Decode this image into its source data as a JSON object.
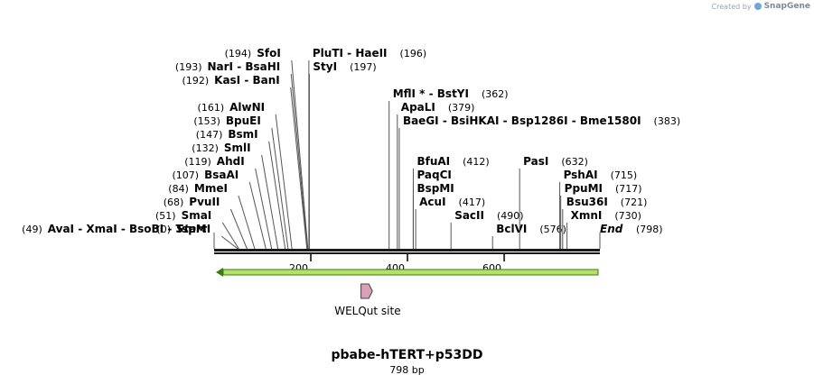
{
  "credit": {
    "prefix": "Created by",
    "brand": "SnapGene",
    "icon": "snapgene-logo-icon"
  },
  "plasmid": {
    "name": "pbabe-hTERT+p53DD",
    "length_label": "798 bp",
    "length_bp": 798
  },
  "ruler": {
    "ticks": [
      {
        "bp": 200,
        "label": "200"
      },
      {
        "bp": 400,
        "label": "400"
      },
      {
        "bp": 600,
        "label": "600"
      }
    ]
  },
  "ends": [
    {
      "name": "Start",
      "pos": "(0)",
      "bp": 0
    },
    {
      "name": "End",
      "pos": "(798)",
      "bp": 798
    }
  ],
  "sites": [
    {
      "bp": 49,
      "row": 0,
      "side": "left",
      "pos": "(49)",
      "names": [
        "AvaI",
        "XmaI",
        "BsoBI",
        "TspMI"
      ]
    },
    {
      "bp": 51,
      "row": 1,
      "side": "left",
      "pos": "(51)",
      "names": [
        "SmaI"
      ]
    },
    {
      "bp": 68,
      "row": 2,
      "side": "left",
      "pos": "(68)",
      "names": [
        "PvuII"
      ]
    },
    {
      "bp": 84,
      "row": 3,
      "side": "left",
      "pos": "(84)",
      "names": [
        "MmeI"
      ]
    },
    {
      "bp": 107,
      "row": 4,
      "side": "left",
      "pos": "(107)",
      "names": [
        "BsaAI"
      ]
    },
    {
      "bp": 119,
      "row": 5,
      "side": "left",
      "pos": "(119)",
      "names": [
        "AhdI"
      ]
    },
    {
      "bp": 132,
      "row": 6,
      "side": "left",
      "pos": "(132)",
      "names": [
        "SmlI"
      ]
    },
    {
      "bp": 147,
      "row": 7,
      "side": "left",
      "pos": "(147)",
      "names": [
        "BsmI"
      ]
    },
    {
      "bp": 153,
      "row": 8,
      "side": "left",
      "pos": "(153)",
      "names": [
        "BpuEI"
      ]
    },
    {
      "bp": 161,
      "row": 9,
      "side": "left",
      "pos": "(161)",
      "names": [
        "AlwNI"
      ]
    },
    {
      "bp": 192,
      "row": 11,
      "side": "left",
      "pos": "(192)",
      "names": [
        "KasI",
        "BanI"
      ]
    },
    {
      "bp": 193,
      "row": 12,
      "side": "left",
      "pos": "(193)",
      "names": [
        "NarI",
        "BsaHI"
      ]
    },
    {
      "bp": 194,
      "row": 13,
      "side": "left",
      "pos": "(194)",
      "names": [
        "SfoI"
      ]
    },
    {
      "bp": 196,
      "row": 13,
      "side": "right",
      "pos": "(196)",
      "names": [
        "PluTI",
        "HaeII"
      ]
    },
    {
      "bp": 197,
      "row": 12,
      "side": "right",
      "pos": "(197)",
      "names": [
        "StyI"
      ]
    },
    {
      "bp": 362,
      "row": 10,
      "side": "right",
      "pos": "(362)",
      "names": [
        "MflI *",
        "BstYI"
      ]
    },
    {
      "bp": 379,
      "row": 9,
      "side": "right",
      "pos": "(379)",
      "names": [
        "ApaLI"
      ]
    },
    {
      "bp": 383,
      "row": 8,
      "side": "right",
      "pos": "(383)",
      "names": [
        "BaeGI",
        "BsiHKAI",
        "Bsp1286I",
        "Bme1580I"
      ]
    },
    {
      "bp": 412,
      "row": 5,
      "side": "right",
      "pos": "(412)",
      "names": [
        "BfuAI"
      ]
    },
    {
      "bp": 412,
      "row": 4,
      "side": "right",
      "pos": "",
      "names": [
        "PaqCI"
      ]
    },
    {
      "bp": 412,
      "row": 3,
      "side": "right",
      "pos": "",
      "names": [
        "BspMI"
      ]
    },
    {
      "bp": 417,
      "row": 2,
      "side": "right",
      "pos": "(417)",
      "names": [
        "AcuI"
      ]
    },
    {
      "bp": 490,
      "row": 1,
      "side": "right",
      "pos": "(490)",
      "names": [
        "SacII"
      ]
    },
    {
      "bp": 576,
      "row": 0,
      "side": "right",
      "pos": "(576)",
      "names": [
        "BclVI"
      ]
    },
    {
      "bp": 632,
      "row": 5,
      "side": "right",
      "pos": "(632)",
      "names": [
        "PasI"
      ]
    },
    {
      "bp": 715,
      "row": 4,
      "side": "right",
      "pos": "(715)",
      "names": [
        "PshAI"
      ]
    },
    {
      "bp": 717,
      "row": 3,
      "side": "right",
      "pos": "(717)",
      "names": [
        "PpuMI"
      ]
    },
    {
      "bp": 721,
      "row": 2,
      "side": "right",
      "pos": "(721)",
      "names": [
        "Bsu36I"
      ]
    },
    {
      "bp": 730,
      "row": 1,
      "side": "right",
      "pos": "(730)",
      "names": [
        "XmnI"
      ]
    }
  ],
  "features": [
    {
      "name": "WELQut site",
      "start": 315,
      "end": 320,
      "color": "#d9a0b8",
      "label": "WELQut site"
    }
  ],
  "colors": {
    "backbone": "#1a1a1a",
    "orf_fill": "#b5e06a",
    "orf_stroke": "#3d7a0f",
    "site_line": "#555555"
  }
}
